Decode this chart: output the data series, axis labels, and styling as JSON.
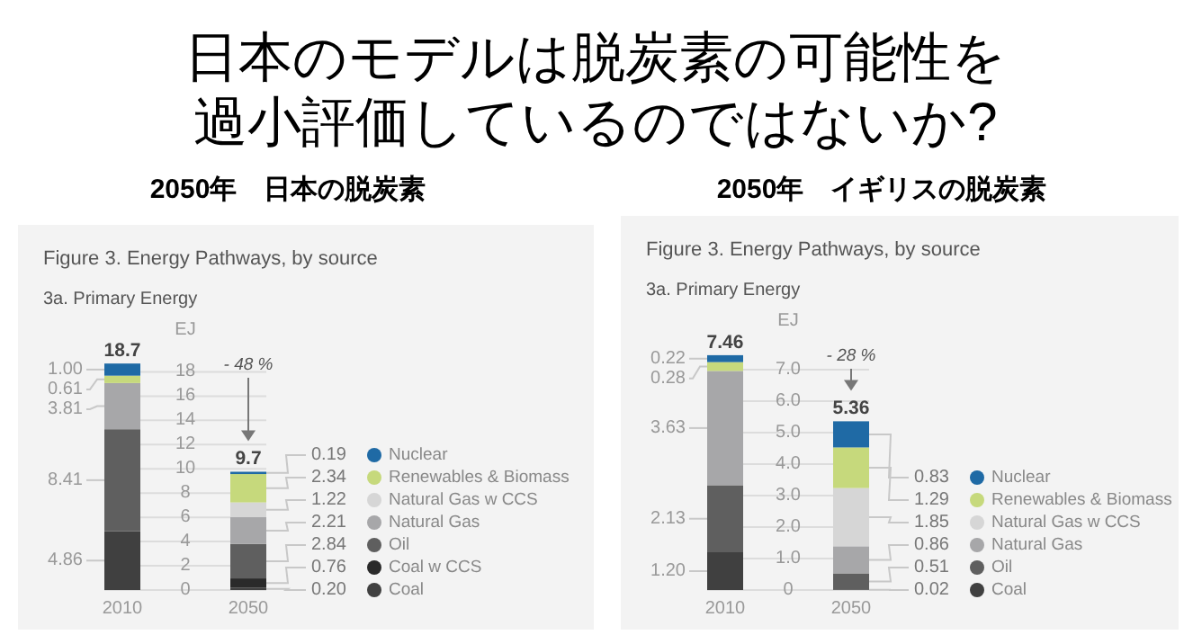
{
  "chart_data": [
    {
      "type": "bar",
      "title": "日本のモデルは脱炭素の可能性を過小評価しているのではないか?",
      "subtitle": "2050年　日本の脱炭素",
      "stacked": true,
      "categories": [
        "2010",
        "2050"
      ],
      "ylabel": "EJ",
      "ylim": [
        0,
        19
      ],
      "yticks": [
        0,
        2,
        4,
        6,
        8,
        10,
        12,
        14,
        16,
        18
      ],
      "grid": "y",
      "legend": "right",
      "totals": [
        "18.7",
        "9.7"
      ],
      "annotations": [
        "Figure 3. Energy Pathways, by source",
        "3a. Primary Energy",
        "- 48 %"
      ],
      "series": [
        {
          "name": "Coal",
          "color": "#404040",
          "values": [
            4.86,
            0.2
          ],
          "value_labels": [
            "4.86",
            "0.20"
          ]
        },
        {
          "name": "Coal w CCS",
          "color": "#2a2a2a",
          "values": [
            null,
            0.76
          ],
          "value_labels": [
            null,
            "0.76"
          ]
        },
        {
          "name": "Oil",
          "color": "#5f5f5f",
          "values": [
            8.41,
            2.84
          ],
          "value_labels": [
            "8.41",
            "2.84"
          ]
        },
        {
          "name": "Natural Gas",
          "color": "#a7a7a9",
          "values": [
            3.81,
            2.21
          ],
          "value_labels": [
            "3.81",
            "2.21"
          ]
        },
        {
          "name": "Natural Gas w CCS",
          "color": "#d6d6d6",
          "values": [
            null,
            1.22
          ],
          "value_labels": [
            null,
            "1.22"
          ]
        },
        {
          "name": "Renewables & Biomass",
          "color": "#c6d97c",
          "values": [
            0.61,
            2.34
          ],
          "value_labels": [
            "0.61",
            "2.34"
          ]
        },
        {
          "name": "Nuclear",
          "color": "#1f6aa5",
          "values": [
            1.0,
            0.19
          ],
          "value_labels": [
            "1.00",
            "0.19"
          ]
        }
      ]
    },
    {
      "type": "bar",
      "subtitle": "2050年　イギリスの脱炭素",
      "stacked": true,
      "categories": [
        "2010",
        "2050"
      ],
      "ylabel": "EJ",
      "ylim": [
        0,
        7.6
      ],
      "yticks": [
        0,
        {
          "value": 1,
          "label": "1.0"
        },
        {
          "value": 2,
          "label": "2.0"
        },
        {
          "value": 3,
          "label": "3.0"
        },
        {
          "value": 4,
          "label": "4.0"
        },
        {
          "value": 5,
          "label": "5.0"
        },
        {
          "value": 6,
          "label": "6.0"
        },
        {
          "value": 7,
          "label": "7.0"
        }
      ],
      "grid": "y",
      "legend": "right",
      "totals": [
        "7.46",
        "5.36"
      ],
      "annotations": [
        "Figure 3. Energy Pathways, by source",
        "3a. Primary Energy",
        "- 28 %"
      ],
      "series": [
        {
          "name": "Coal",
          "color": "#404040",
          "values": [
            1.2,
            0.02
          ],
          "value_labels": [
            "1.20",
            "0.02"
          ]
        },
        {
          "name": "Oil",
          "color": "#5f5f5f",
          "values": [
            2.13,
            0.51
          ],
          "value_labels": [
            "2.13",
            "0.51"
          ]
        },
        {
          "name": "Natural Gas",
          "color": "#a7a7a9",
          "values": [
            3.63,
            0.86
          ],
          "value_labels": [
            "3.63",
            "0.86"
          ]
        },
        {
          "name": "Natural Gas w CCS",
          "color": "#d6d6d6",
          "values": [
            null,
            1.85
          ],
          "value_labels": [
            null,
            "1.85"
          ]
        },
        {
          "name": "Renewables & Biomass",
          "color": "#c6d97c",
          "values": [
            0.28,
            1.29
          ],
          "value_labels": [
            "0.28",
            "1.29"
          ]
        },
        {
          "name": "Nuclear",
          "color": "#1f6aa5",
          "values": [
            0.22,
            0.83
          ],
          "value_labels": [
            "0.22",
            "0.83"
          ]
        }
      ]
    }
  ]
}
